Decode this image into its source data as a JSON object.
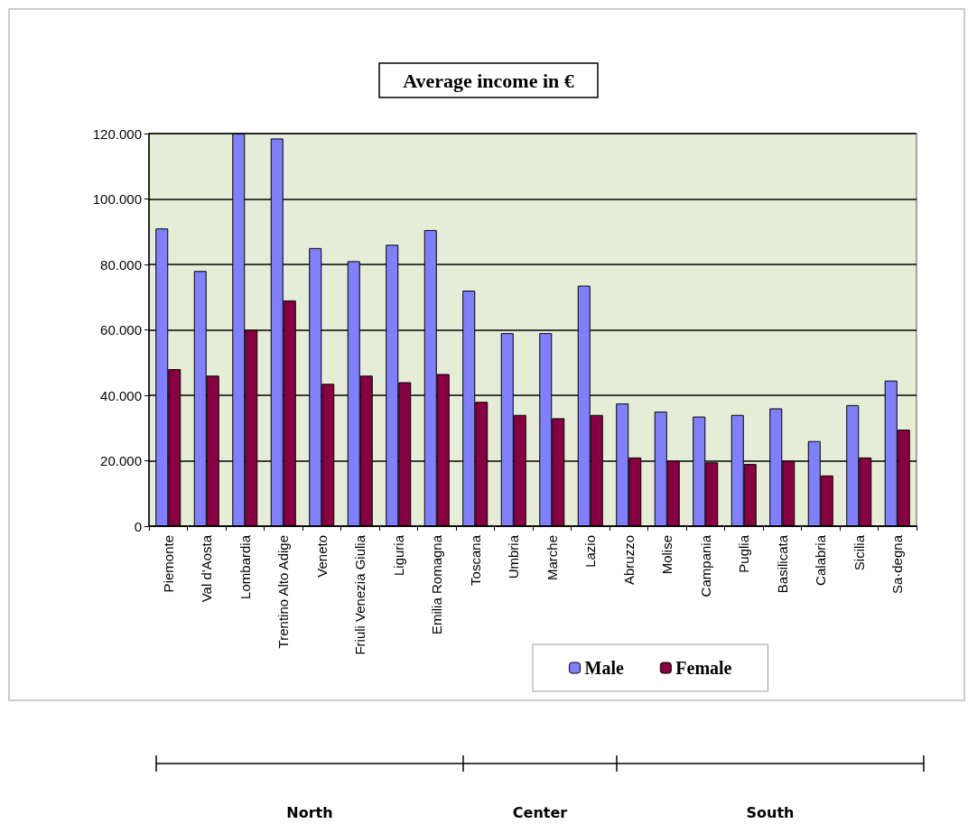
{
  "chart_data": {
    "type": "bar",
    "title": "Average income in €",
    "categories": [
      "Piemonte",
      "Val d'Aosta",
      "Lombardia",
      "Trentino Alto Adige",
      "Veneto",
      "Friuli Venezia Giulia",
      "Liguria",
      "Emilia Romagna",
      "Toscana",
      "Umbria",
      "Marche",
      "Lazio",
      "Abruzzo",
      "Molise",
      "Campania",
      "Puglia",
      "Basilicata",
      "Calabria",
      "Sicilia",
      "Sa·degna"
    ],
    "series": [
      {
        "name": "Male",
        "color": "#8080ff",
        "values": [
          91000,
          78000,
          120000,
          118500,
          85000,
          81000,
          86000,
          90500,
          72000,
          59000,
          59000,
          73500,
          37500,
          35000,
          33500,
          34000,
          36000,
          26000,
          37000,
          44500
        ]
      },
      {
        "name": "Female",
        "color": "#880040",
        "values": [
          48000,
          46000,
          60000,
          69000,
          43500,
          46000,
          44000,
          46500,
          38000,
          34000,
          33000,
          34000,
          21000,
          20000,
          19500,
          19000,
          20000,
          15500,
          21000,
          29500
        ]
      }
    ],
    "ylim": [
      0,
      120000
    ],
    "yticks": [
      {
        "value": 0,
        "label": "0"
      },
      {
        "value": 20000,
        "label": "20.000"
      },
      {
        "value": 40000,
        "label": "40.000"
      },
      {
        "value": 60000,
        "label": "60.000"
      },
      {
        "value": 80000,
        "label": "80.000"
      },
      {
        "value": 100000,
        "label": "100.000"
      },
      {
        "value": 120000,
        "label": "120.000"
      }
    ],
    "grid": "y",
    "legend": "bottom right",
    "annotations": [
      "North",
      "Center",
      "South"
    ]
  }
}
